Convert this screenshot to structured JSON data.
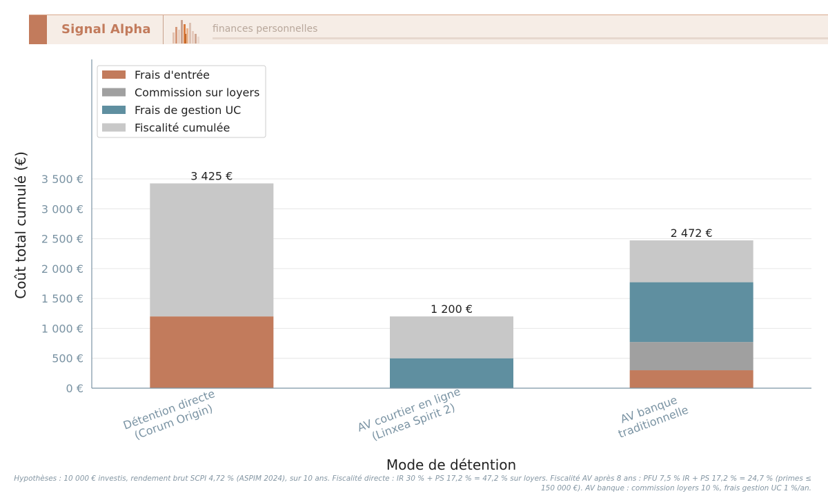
{
  "header": {
    "brand": "Signal Alpha",
    "subtitle": "finances personnelles"
  },
  "colors": {
    "accent": "#c27b5c",
    "header_bg": "#f6ede6",
    "axis_text": "#7a93a3"
  },
  "chart_data": {
    "type": "bar",
    "stacked": true,
    "title": "",
    "xlabel": "Mode de détention",
    "ylabel": "Coût total cumulé (€)",
    "ylim": [
      0,
      5000
    ],
    "yticks": [
      0,
      500,
      1000,
      1500,
      2000,
      2500,
      3000,
      3500
    ],
    "ytick_labels": [
      "0 €",
      "500 €",
      "1 000 €",
      "1 500 €",
      "2 000 €",
      "2 500 €",
      "3 000 €",
      "3 500 €"
    ],
    "grid": "horizontal",
    "legend": "top-left",
    "categories": [
      [
        "Détention directe",
        "(Corum Origin)"
      ],
      [
        "AV courtier en ligne",
        "(Linxea Spirit 2)"
      ],
      [
        "AV banque",
        "traditionnelle"
      ]
    ],
    "series": [
      {
        "name": "Frais d'entrée",
        "color": "#c27b5c",
        "values": [
          1200,
          0,
          300
        ]
      },
      {
        "name": "Commission sur loyers",
        "color": "#a0a0a0",
        "values": [
          0,
          0,
          472
        ]
      },
      {
        "name": "Frais de gestion UC",
        "color": "#5f8fa0",
        "values": [
          0,
          500,
          1000
        ]
      },
      {
        "name": "Fiscalité cumulée",
        "color": "#c8c8c8",
        "values": [
          2225,
          700,
          700
        ]
      }
    ],
    "totals": [
      3425,
      1200,
      2472
    ],
    "total_labels": [
      "3 425 €",
      "1 200 €",
      "2 472 €"
    ]
  },
  "footnote": "Hypothèses : 10 000 € investis, rendement brut SCPI 4,72 % (ASPIM 2024), sur 10 ans. Fiscalité directe : IR 30 % + PS 17,2 % = 47,2 % sur loyers. Fiscalité AV après 8 ans : PFU 7,5 % IR + PS 17,2 % = 24,7 % (primes ≤ 150 000 €). AV banque : commission loyers 10 %, frais gestion UC 1 %/an."
}
